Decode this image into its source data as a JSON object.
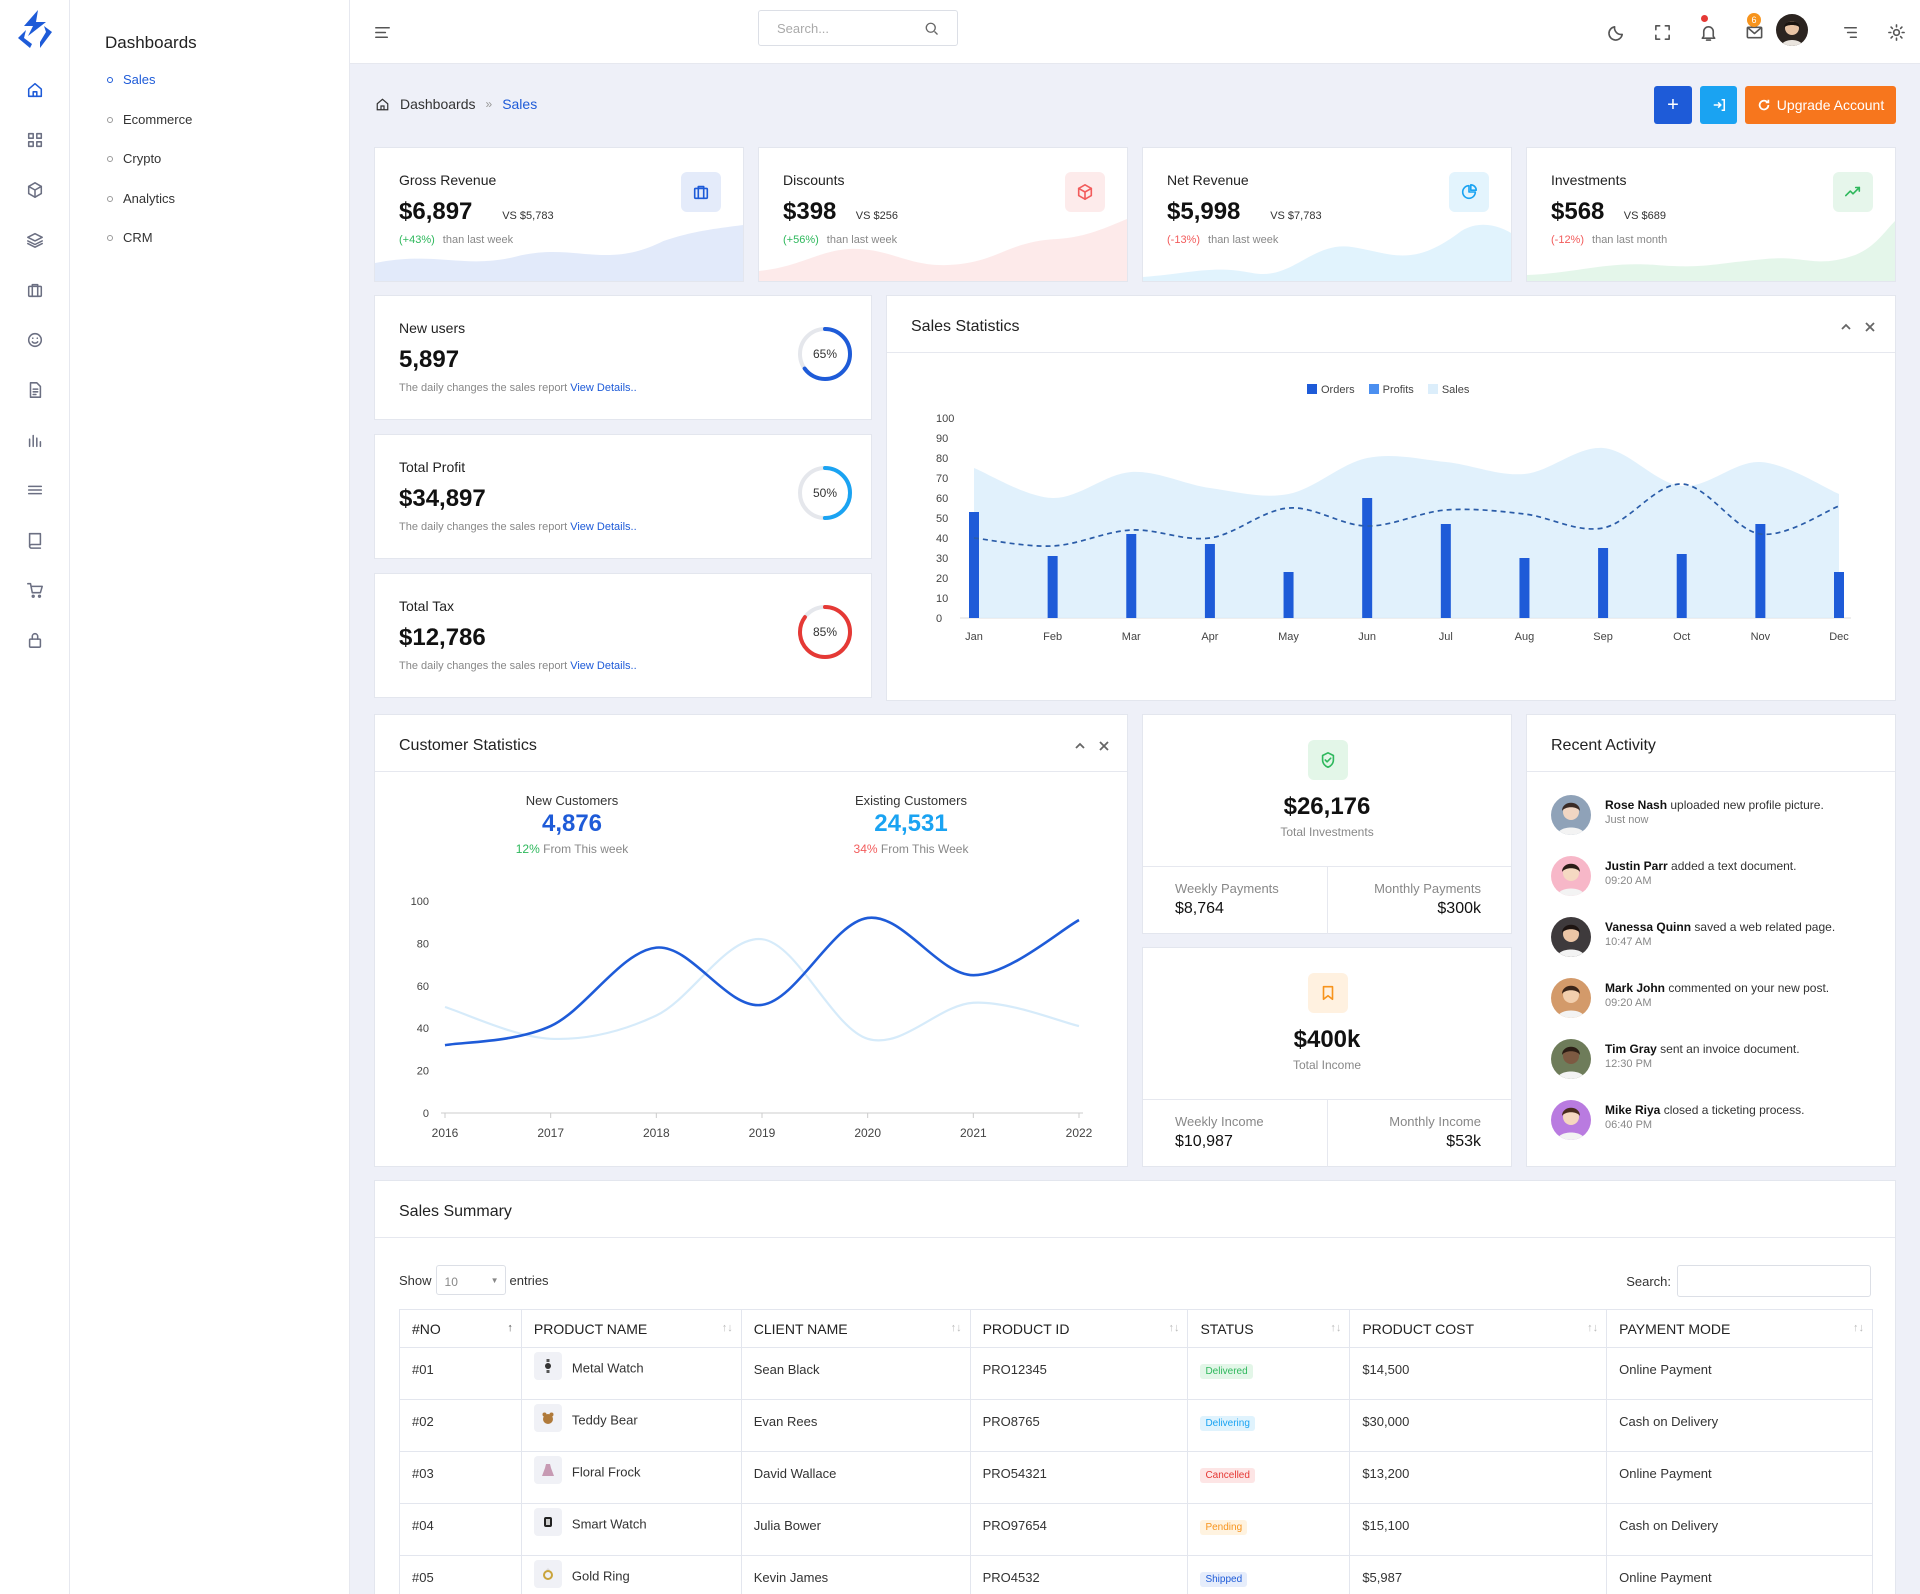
{
  "brand": {
    "accent": "#1e5bd8",
    "orange": "#f7941d",
    "sky": "#1aa3f2"
  },
  "search": {
    "placeholder": "Search..."
  },
  "topbar": {
    "mail_badge": "6",
    "icons": [
      "menu-icon",
      "moon-icon",
      "fullscreen-icon",
      "bell-icon",
      "mail-icon",
      "user-avatar",
      "list-icon",
      "gear-icon"
    ]
  },
  "sidebar": {
    "icons": [
      "home-icon",
      "grid-icon",
      "box-icon",
      "layers-icon",
      "briefcase-icon",
      "smile-icon",
      "file-icon",
      "bar-chart-icon",
      "list-icon",
      "book-icon",
      "cart-icon",
      "lock-icon"
    ]
  },
  "subnav": {
    "title": "Dashboards",
    "items": [
      "Sales",
      "Ecommerce",
      "Crypto",
      "Analytics",
      "CRM"
    ],
    "active": "Sales"
  },
  "breadcrumb": {
    "root": "Dashboards",
    "sep": "»",
    "current": "Sales"
  },
  "actions": {
    "add": "+",
    "login": "→",
    "upgrade": "Upgrade Account"
  },
  "stats": [
    {
      "label": "Gross Revenue",
      "value": "$6,897",
      "vs": "VS $5,783",
      "change": "(+43%)",
      "period": "than last week",
      "color": "#1e5bd8",
      "change_color": "#2eb85c",
      "icon": "briefcase-icon"
    },
    {
      "label": "Discounts",
      "value": "$398",
      "vs": "VS $256",
      "change": "(+56%)",
      "period": "than last week",
      "color": "#f25c5c",
      "change_color": "#2eb85c",
      "icon": "box-icon"
    },
    {
      "label": "Net Revenue",
      "value": "$5,998",
      "vs": "VS $7,783",
      "change": "(-13%)",
      "period": "than last week",
      "color": "#1aa3f2",
      "change_color": "#f25c5c",
      "icon": "pie-chart-icon"
    },
    {
      "label": "Investments",
      "value": "$568",
      "vs": "VS $689",
      "change": "(-12%)",
      "period": "than last month",
      "color": "#2eb85c",
      "change_color": "#f25c5c",
      "icon": "trending-up-icon"
    }
  ],
  "small_stats": [
    {
      "label": "New users",
      "value": "5,897",
      "desc": "The daily changes the sales report",
      "link": "View Details..",
      "pct": "65%",
      "pct_value": 65,
      "color": "#1e5bd8"
    },
    {
      "label": "Total Profit",
      "value": "$34,897",
      "desc": "The daily changes the sales report",
      "link": "View Details..",
      "pct": "50%",
      "pct_value": 50,
      "color": "#1aa3f2"
    },
    {
      "label": "Total Tax",
      "value": "$12,786",
      "desc": "The daily changes the sales report",
      "link": "View Details..",
      "pct": "85%",
      "pct_value": 85,
      "color": "#e53935"
    }
  ],
  "sales_stats": {
    "title": "Sales Statistics"
  },
  "customer_stats": {
    "title": "Customer Statistics",
    "new": {
      "label": "New Customers",
      "value": "4,876",
      "pct": "12%",
      "period": "From This week"
    },
    "existing": {
      "label": "Existing Customers",
      "value": "24,531",
      "pct": "34%",
      "period": "From This Week"
    }
  },
  "investments": {
    "value": "$26,176",
    "label": "Total Investments",
    "weekly_label": "Weekly Payments",
    "weekly": "$8,764",
    "monthly_label": "Monthly Payments",
    "monthly": "$300k"
  },
  "income": {
    "value": "$400k",
    "label": "Total Income",
    "weekly_label": "Weekly Income",
    "weekly": "$10,987",
    "monthly_label": "Monthly Income",
    "monthly": "$53k"
  },
  "activity": {
    "title": "Recent Activity",
    "items": [
      {
        "name": "Rose Nash",
        "text": "uploaded new profile picture.",
        "time": "Just now"
      },
      {
        "name": "Justin Parr",
        "text": "added a text document.",
        "time": "09:20 AM"
      },
      {
        "name": "Vanessa Quinn",
        "text": "saved a web related page.",
        "time": "10:47 AM"
      },
      {
        "name": "Mark John",
        "text": "commented on your new post.",
        "time": "09:20 AM"
      },
      {
        "name": "Tim Gray",
        "text": "sent an invoice document.",
        "time": "12:30 PM"
      },
      {
        "name": "Mike Riya",
        "text": "closed a ticketing process.",
        "time": "06:40 PM"
      }
    ]
  },
  "summary": {
    "title": "Sales Summary",
    "show": "Show",
    "entries_value": "10",
    "entries": "entries",
    "search_label": "Search:",
    "columns": [
      "#NO",
      "PRODUCT NAME",
      "CLIENT NAME",
      "PRODUCT ID",
      "STATUS",
      "PRODUCT COST",
      "PAYMENT MODE"
    ],
    "rows": [
      {
        "no": "#01",
        "product": "Metal Watch",
        "client": "Sean Black",
        "pid": "PRO12345",
        "status": "Delivered",
        "cost": "$14,500",
        "mode": "Online Payment"
      },
      {
        "no": "#02",
        "product": "Teddy Bear",
        "client": "Evan Rees",
        "pid": "PRO8765",
        "status": "Delivering",
        "cost": "$30,000",
        "mode": "Cash on Delivery"
      },
      {
        "no": "#03",
        "product": "Floral Frock",
        "client": "David Wallace",
        "pid": "PRO54321",
        "status": "Cancelled",
        "cost": "$13,200",
        "mode": "Online Payment"
      },
      {
        "no": "#04",
        "product": "Smart Watch",
        "client": "Julia Bower",
        "pid": "PRO97654",
        "status": "Pending",
        "cost": "$15,100",
        "mode": "Cash on Delivery"
      },
      {
        "no": "#05",
        "product": "Gold Ring",
        "client": "Kevin James",
        "pid": "PRO4532",
        "status": "Shipped",
        "cost": "$5,987",
        "mode": "Online Payment"
      }
    ]
  },
  "chart_data": [
    {
      "type": "bar",
      "title": "Sales Statistics",
      "categories": [
        "Jan",
        "Feb",
        "Mar",
        "Apr",
        "May",
        "Jun",
        "Jul",
        "Aug",
        "Sep",
        "Oct",
        "Nov",
        "Dec"
      ],
      "ylim": [
        0,
        100
      ],
      "yticks": [
        0,
        10,
        20,
        30,
        40,
        50,
        60,
        70,
        80,
        90,
        100
      ],
      "legend_position": "top-center",
      "series": [
        {
          "name": "Orders",
          "type": "bar",
          "color": "#1e5bd8",
          "values": [
            53,
            31,
            42,
            37,
            23,
            60,
            47,
            30,
            35,
            32,
            47,
            23
          ]
        },
        {
          "name": "Profits",
          "type": "line-dashed",
          "color": "#2a5ca8",
          "values": [
            40,
            36,
            44,
            40,
            55,
            46,
            54,
            52,
            45,
            67,
            42,
            56
          ]
        },
        {
          "name": "Sales",
          "type": "area",
          "color": "#dceefb",
          "values": [
            75,
            60,
            73,
            65,
            62,
            80,
            78,
            72,
            85,
            66,
            78,
            62
          ]
        }
      ]
    },
    {
      "type": "line",
      "title": "Customer Statistics",
      "x": [
        "2016",
        "2017",
        "2018",
        "2019",
        "2020",
        "2021",
        "2022"
      ],
      "ylim": [
        0,
        100
      ],
      "yticks": [
        0,
        20,
        40,
        60,
        80,
        100
      ],
      "series": [
        {
          "name": "New Customers",
          "color": "#1e5bd8",
          "values": [
            32,
            41,
            78,
            51,
            92,
            65,
            91
          ]
        },
        {
          "name": "Existing Customers",
          "color": "#d6ebfa",
          "values": [
            50,
            35,
            46,
            82,
            35,
            52,
            41
          ]
        }
      ]
    }
  ]
}
